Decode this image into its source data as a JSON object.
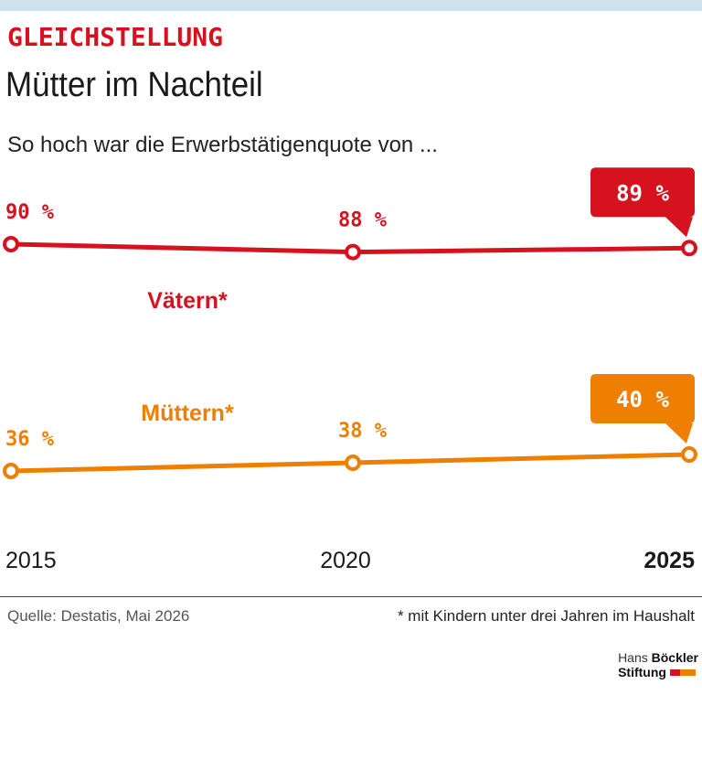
{
  "header": {
    "kicker": "GLEICHSTELLUNG",
    "title": "Mütter im Nachteil",
    "subtitle": "So hoch war die Erwerbstätigenquote von ..."
  },
  "footer": {
    "source": "Quelle: Destatis, Mai 2026",
    "footnote": "* mit Kindern unter drei Jahren im Haushalt",
    "logo_line1_light": "Hans ",
    "logo_line1_bold": "Böckler",
    "logo_line2": "Stiftung"
  },
  "colors": {
    "red": "#d7121f",
    "orange": "#ee7f00"
  },
  "chart_data": {
    "type": "line",
    "x": [
      "2015",
      "2020",
      "2025"
    ],
    "series": [
      {
        "name": "Vätern*",
        "values": [
          90,
          88,
          89
        ],
        "labels": [
          "90 %",
          "88 %",
          "89 %"
        ],
        "color": "#d7121f"
      },
      {
        "name": "Müttern*",
        "values": [
          36,
          38,
          40
        ],
        "labels": [
          "36 %",
          "38 %",
          "40 %"
        ],
        "color": "#ee7f00"
      }
    ],
    "highlight_last": true,
    "grid": false,
    "legend": "inline"
  }
}
